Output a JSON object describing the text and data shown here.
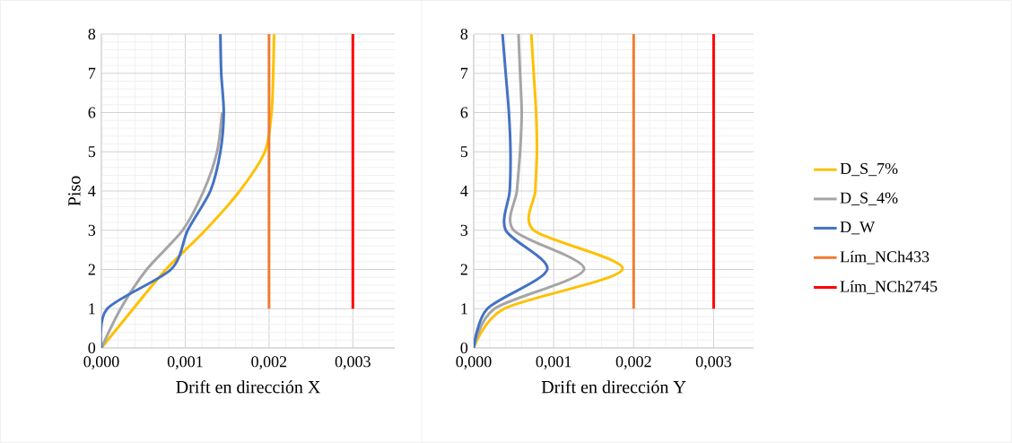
{
  "chart_data": [
    {
      "type": "line",
      "xlabel": "Drift en dirección X",
      "ylabel": "Piso",
      "xlim": [
        0,
        0.0035
      ],
      "ylim": [
        0,
        8
      ],
      "xticks": [
        {
          "value": 0,
          "label": "0,000"
        },
        {
          "value": 0.001,
          "label": "0,001"
        },
        {
          "value": 0.002,
          "label": "0,002"
        },
        {
          "value": 0.003,
          "label": "0,003"
        }
      ],
      "yticks": [
        0,
        1,
        2,
        3,
        4,
        5,
        6,
        7,
        8
      ],
      "grid": true,
      "legend": false,
      "series": [
        {
          "color": "#ffc000",
          "x": [
            0,
            0.00038,
            0.00077,
            0.00124,
            0.00165,
            0.00195,
            0.00203,
            0.00205,
            0.00206
          ],
          "values": [
            0,
            1,
            2,
            3,
            4,
            5,
            6,
            7,
            8
          ]
        },
        {
          "color": "#a5a5a5",
          "x": [
            0,
            0.00023,
            0.00054,
            0.00097,
            0.00122,
            0.00138,
            0.00144,
            null,
            null
          ],
          "values": [
            0,
            1,
            2,
            3,
            4,
            5,
            6,
            null,
            null
          ]
        },
        {
          "color": "#4472c4",
          "x": [
            0,
            7e-05,
            0.00083,
            0.00103,
            0.0013,
            0.00142,
            0.00146,
            0.00143,
            0.00142
          ],
          "values": [
            0,
            1,
            2,
            3,
            4,
            5,
            6,
            7,
            8
          ]
        },
        {
          "color": "#ed7d31",
          "x": [
            0.002,
            0.002,
            0.002,
            0.002,
            0.002,
            0.002,
            0.002,
            0.002
          ],
          "values": [
            1,
            2,
            3,
            4,
            5,
            6,
            7,
            8
          ]
        },
        {
          "color": "#ff0000",
          "x": [
            0.003,
            0.003,
            0.003,
            0.003,
            0.003,
            0.003,
            0.003,
            0.003
          ],
          "values": [
            1,
            2,
            3,
            4,
            5,
            6,
            7,
            8
          ]
        }
      ]
    },
    {
      "type": "line",
      "xlabel": "Drift en dirección Y",
      "xlim": [
        0,
        0.0035
      ],
      "ylim": [
        0,
        8
      ],
      "xticks": [
        {
          "value": 0,
          "label": "0,000"
        },
        {
          "value": 0.001,
          "label": "0,001"
        },
        {
          "value": 0.002,
          "label": "0,002"
        },
        {
          "value": 0.003,
          "label": "0,003"
        }
      ],
      "yticks": [
        0,
        1,
        2,
        3,
        4,
        5,
        6,
        7,
        8
      ],
      "grid": true,
      "legend": "right",
      "series": [
        {
          "name": "D_S_7%",
          "color": "#ffc000",
          "x": [
            0,
            0.00038,
            0.00186,
            0.00075,
            0.00077,
            0.00079,
            0.00078,
            0.00075,
            0.00072
          ],
          "values": [
            0,
            1,
            2,
            3,
            4,
            5,
            6,
            7,
            8
          ]
        },
        {
          "name": "D_S_4%",
          "color": "#a5a5a5",
          "x": [
            0,
            0.00026,
            0.00138,
            0.0005,
            0.00054,
            0.00058,
            0.0006,
            0.00058,
            0.00056
          ],
          "values": [
            0,
            1,
            2,
            3,
            4,
            5,
            6,
            7,
            8
          ]
        },
        {
          "name": "D_W",
          "color": "#4472c4",
          "x": [
            0,
            0.00017,
            0.00092,
            0.0004,
            0.00045,
            0.00046,
            0.00044,
            0.0004,
            0.00036
          ],
          "values": [
            0,
            1,
            2,
            3,
            4,
            5,
            6,
            7,
            8
          ]
        },
        {
          "name": "Lím_NCh433",
          "color": "#ed7d31",
          "x": [
            0.002,
            0.002,
            0.002,
            0.002,
            0.002,
            0.002,
            0.002,
            0.002
          ],
          "values": [
            1,
            2,
            3,
            4,
            5,
            6,
            7,
            8
          ]
        },
        {
          "name": "Lím_NCh2745",
          "color": "#ff0000",
          "x": [
            0.003,
            0.003,
            0.003,
            0.003,
            0.003,
            0.003,
            0.003,
            0.003
          ],
          "values": [
            1,
            2,
            3,
            4,
            5,
            6,
            7,
            8
          ]
        }
      ]
    }
  ]
}
